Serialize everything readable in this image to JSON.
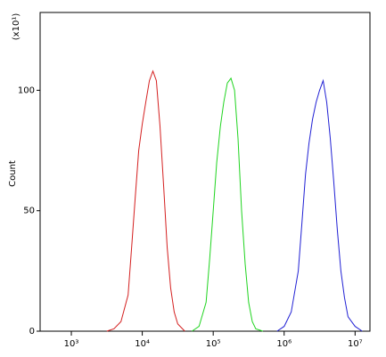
{
  "chart_data": {
    "type": "line",
    "y_label": "Count",
    "y_multiplier": "(x10¹)",
    "xscale": "log",
    "xlim": [
      363,
      16200000
    ],
    "ylim": [
      0,
      132.3
    ],
    "xticks": [
      {
        "value": 1000,
        "label": "10³"
      },
      {
        "value": 10000,
        "label": "10⁴"
      },
      {
        "value": 100000,
        "label": "10⁵"
      },
      {
        "value": 1000000,
        "label": "10⁶"
      },
      {
        "value": 10000000,
        "label": "10⁷"
      }
    ],
    "yticks": [
      0,
      50,
      100
    ],
    "series": [
      {
        "color": "#d42020",
        "x": [
          3160,
          3980,
          5010,
          6310,
          7080,
          7940,
          8910,
          10000,
          11200,
          12600,
          14100,
          15800,
          17800,
          20000,
          22400,
          25100,
          28200,
          31600,
          39800
        ],
        "values": [
          0,
          1,
          4,
          15,
          35,
          55,
          75,
          86,
          95,
          104,
          108,
          104,
          85,
          60,
          35,
          18,
          8,
          3,
          0
        ]
      },
      {
        "color": "#20d420",
        "x": [
          50100,
          63100,
          79400,
          89100,
          100000,
          112000,
          126000,
          141000,
          158000,
          178000,
          200000,
          224000,
          251000,
          282000,
          316000,
          355000,
          398000,
          501000
        ],
        "values": [
          0,
          2,
          12,
          30,
          50,
          70,
          85,
          95,
          103,
          105,
          100,
          80,
          50,
          28,
          12,
          4,
          1,
          0
        ]
      },
      {
        "color": "#2020d4",
        "x": [
          794000,
          1000000,
          1260000,
          1580000,
          1780000,
          2000000,
          2240000,
          2510000,
          2820000,
          3160000,
          3550000,
          3980000,
          4470000,
          5010000,
          5620000,
          6310000,
          7080000,
          7940000,
          10000000,
          12600000
        ],
        "values": [
          0,
          2,
          8,
          25,
          45,
          65,
          78,
          88,
          95,
          100,
          104,
          95,
          80,
          62,
          42,
          25,
          14,
          6,
          2,
          0
        ]
      }
    ]
  }
}
